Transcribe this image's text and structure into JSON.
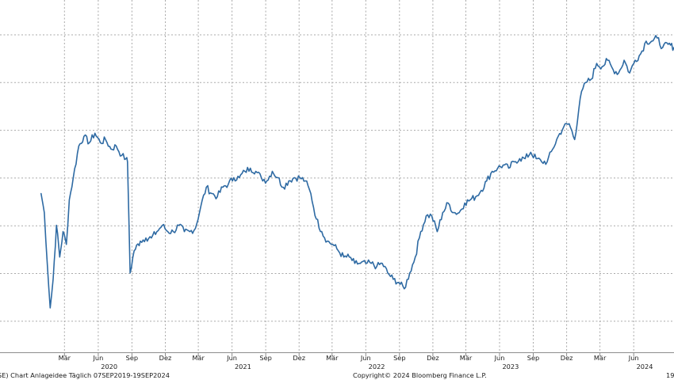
{
  "chart_data": {
    "type": "line",
    "x_range": [
      "2019-09-07",
      "2024-09-19"
    ],
    "y_range": [
      0,
      100
    ],
    "y_axis_labels": "none",
    "grid": true,
    "line_color": "#2e6aa3",
    "month_ticks": [
      {
        "date": "2020-03-01",
        "label": "Mär"
      },
      {
        "date": "2020-06-01",
        "label": "Jun"
      },
      {
        "date": "2020-09-01",
        "label": "Sep"
      },
      {
        "date": "2020-12-01",
        "label": "Dez"
      },
      {
        "date": "2021-03-01",
        "label": "Mär"
      },
      {
        "date": "2021-06-01",
        "label": "Jun"
      },
      {
        "date": "2021-09-01",
        "label": "Sep"
      },
      {
        "date": "2021-12-01",
        "label": "Dez"
      },
      {
        "date": "2022-03-01",
        "label": "Mär"
      },
      {
        "date": "2022-06-01",
        "label": "Jun"
      },
      {
        "date": "2022-09-01",
        "label": "Sep"
      },
      {
        "date": "2022-12-01",
        "label": "Dez"
      },
      {
        "date": "2023-03-01",
        "label": "Mär"
      },
      {
        "date": "2023-06-01",
        "label": "Jun"
      },
      {
        "date": "2023-09-01",
        "label": "Sep"
      },
      {
        "date": "2023-12-01",
        "label": "Dez"
      },
      {
        "date": "2024-03-01",
        "label": "Mär"
      },
      {
        "date": "2024-06-01",
        "label": "Jun"
      }
    ],
    "year_labels": [
      {
        "date": "2020-07-01",
        "label": "2020"
      },
      {
        "date": "2021-07-01",
        "label": "2021"
      },
      {
        "date": "2022-07-01",
        "label": "2022"
      },
      {
        "date": "2023-07-01",
        "label": "2023"
      },
      {
        "date": "2024-07-01",
        "label": "2024"
      }
    ],
    "series": [
      {
        "points": [
          [
            "2019-12-28",
            50
          ],
          [
            "2020-01-06",
            44
          ],
          [
            "2020-01-14",
            28
          ],
          [
            "2020-01-22",
            14
          ],
          [
            "2020-01-30",
            23
          ],
          [
            "2020-02-08",
            40
          ],
          [
            "2020-02-17",
            30
          ],
          [
            "2020-02-26",
            38
          ],
          [
            "2020-03-06",
            34
          ],
          [
            "2020-03-14",
            48
          ],
          [
            "2020-03-25",
            55
          ],
          [
            "2020-04-09",
            65
          ],
          [
            "2020-04-23",
            68
          ],
          [
            "2020-05-08",
            66
          ],
          [
            "2020-05-23",
            69
          ],
          [
            "2020-06-07",
            66
          ],
          [
            "2020-06-21",
            67
          ],
          [
            "2020-07-06",
            64
          ],
          [
            "2020-07-20",
            65
          ],
          [
            "2020-08-04",
            62
          ],
          [
            "2020-08-16",
            61
          ],
          [
            "2020-08-20",
            60
          ],
          [
            "2020-08-27",
            25
          ],
          [
            "2020-09-07",
            32
          ],
          [
            "2020-09-24",
            35
          ],
          [
            "2020-10-09",
            36
          ],
          [
            "2020-10-24",
            36
          ],
          [
            "2020-11-08",
            38
          ],
          [
            "2020-11-23",
            40
          ],
          [
            "2020-12-08",
            38
          ],
          [
            "2020-12-23",
            38
          ],
          [
            "2021-01-07",
            40
          ],
          [
            "2021-01-22",
            38
          ],
          [
            "2021-02-06",
            38
          ],
          [
            "2021-02-21",
            39
          ],
          [
            "2021-03-08",
            46
          ],
          [
            "2021-03-23",
            52
          ],
          [
            "2021-04-07",
            50
          ],
          [
            "2021-04-22",
            49
          ],
          [
            "2021-05-07",
            52
          ],
          [
            "2021-05-22",
            53
          ],
          [
            "2021-06-06",
            55
          ],
          [
            "2021-06-21",
            55
          ],
          [
            "2021-07-06",
            57
          ],
          [
            "2021-07-21",
            58
          ],
          [
            "2021-08-05",
            57
          ],
          [
            "2021-08-20",
            55
          ],
          [
            "2021-09-04",
            54
          ],
          [
            "2021-09-19",
            57
          ],
          [
            "2021-10-04",
            55
          ],
          [
            "2021-10-19",
            52
          ],
          [
            "2021-11-03",
            54
          ],
          [
            "2021-11-18",
            55
          ],
          [
            "2021-12-03",
            55
          ],
          [
            "2021-12-18",
            54
          ],
          [
            "2022-01-02",
            50
          ],
          [
            "2022-01-17",
            42
          ],
          [
            "2022-02-01",
            38
          ],
          [
            "2022-02-16",
            35
          ],
          [
            "2022-03-03",
            34
          ],
          [
            "2022-03-18",
            32
          ],
          [
            "2022-04-02",
            30
          ],
          [
            "2022-04-17",
            30
          ],
          [
            "2022-05-02",
            28
          ],
          [
            "2022-05-17",
            28
          ],
          [
            "2022-06-01",
            28
          ],
          [
            "2022-06-16",
            28
          ],
          [
            "2022-07-01",
            27
          ],
          [
            "2022-07-16",
            28
          ],
          [
            "2022-07-31",
            25
          ],
          [
            "2022-08-15",
            23
          ],
          [
            "2022-08-30",
            22
          ],
          [
            "2022-09-14",
            20
          ],
          [
            "2022-09-29",
            25
          ],
          [
            "2022-10-14",
            30
          ],
          [
            "2022-10-29",
            38
          ],
          [
            "2022-11-13",
            43
          ],
          [
            "2022-11-28",
            43
          ],
          [
            "2022-12-13",
            38
          ],
          [
            "2022-12-28",
            44
          ],
          [
            "2023-01-12",
            47
          ],
          [
            "2023-01-27",
            44
          ],
          [
            "2023-02-11",
            44
          ],
          [
            "2023-02-26",
            47
          ],
          [
            "2023-03-13",
            48
          ],
          [
            "2023-03-28",
            49
          ],
          [
            "2023-04-12",
            51
          ],
          [
            "2023-04-27",
            54
          ],
          [
            "2023-05-12",
            57
          ],
          [
            "2023-05-27",
            58
          ],
          [
            "2023-06-11",
            59
          ],
          [
            "2023-06-26",
            58
          ],
          [
            "2023-07-11",
            60
          ],
          [
            "2023-07-26",
            61
          ],
          [
            "2023-08-10",
            61
          ],
          [
            "2023-08-25",
            63
          ],
          [
            "2023-09-09",
            61
          ],
          [
            "2023-09-24",
            60
          ],
          [
            "2023-10-09",
            60
          ],
          [
            "2023-10-24",
            64
          ],
          [
            "2023-11-08",
            68
          ],
          [
            "2023-11-23",
            71
          ],
          [
            "2023-12-08",
            72
          ],
          [
            "2023-12-23",
            67
          ],
          [
            "2024-01-07",
            80
          ],
          [
            "2024-01-22",
            85
          ],
          [
            "2024-02-06",
            86
          ],
          [
            "2024-02-21",
            91
          ],
          [
            "2024-03-07",
            90
          ],
          [
            "2024-03-22",
            92
          ],
          [
            "2024-04-06",
            89
          ],
          [
            "2024-04-21",
            88
          ],
          [
            "2024-05-06",
            92
          ],
          [
            "2024-05-21",
            88
          ],
          [
            "2024-06-05",
            92
          ],
          [
            "2024-06-20",
            94
          ],
          [
            "2024-07-05",
            98
          ],
          [
            "2024-07-20",
            98
          ],
          [
            "2024-08-04",
            99
          ],
          [
            "2024-08-19",
            96
          ],
          [
            "2024-09-03",
            97
          ],
          [
            "2024-09-19",
            96
          ]
        ]
      }
    ]
  },
  "footer": {
    "left_text": "SE) Chart Anlageidee  Täglich 07SEP2019-19SEP2024",
    "center_text": "Copyright© 2024 Bloomberg Finance L.P.",
    "right_text": "19"
  }
}
